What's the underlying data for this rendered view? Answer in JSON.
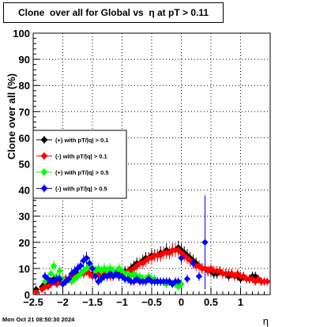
{
  "chart_data": {
    "type": "scatter",
    "title": "Clone  over all for Global vs  η at pT > 0.11",
    "xlabel": "η",
    "ylabel": "Clone  over all (%)",
    "xlim": [
      -2.5,
      1.5
    ],
    "ylim": [
      0,
      100
    ],
    "xticks": [
      "-2.5",
      "-2",
      "-1.5",
      "-1",
      "-0.5",
      "0",
      "0.5",
      "1"
    ],
    "yticks": [
      "0",
      "10",
      "20",
      "30",
      "40",
      "50",
      "60",
      "70",
      "80",
      "90",
      "100"
    ],
    "grid": true,
    "legend_position": "middle-left",
    "series": [
      {
        "name": "(+) with pT/|q| > 0.1",
        "color": "#000000",
        "marker": "diamond",
        "points": [
          [
            -2.45,
            2
          ],
          [
            -2.35,
            3
          ],
          [
            -2.3,
            4
          ],
          [
            -2.25,
            5
          ],
          [
            -2.2,
            5
          ],
          [
            -2.15,
            6
          ],
          [
            -2.1,
            5
          ],
          [
            -2.05,
            6
          ],
          [
            -2.0,
            5
          ],
          [
            -1.95,
            6
          ],
          [
            -1.9,
            6
          ],
          [
            -1.85,
            7
          ],
          [
            -1.8,
            7
          ],
          [
            -1.75,
            8
          ],
          [
            -1.7,
            8
          ],
          [
            -1.65,
            9
          ],
          [
            -1.6,
            9
          ],
          [
            -1.55,
            8
          ],
          [
            -1.5,
            8
          ],
          [
            -1.45,
            9
          ],
          [
            -1.4,
            8
          ],
          [
            -1.35,
            8
          ],
          [
            -1.3,
            8
          ],
          [
            -1.25,
            9
          ],
          [
            -1.2,
            8
          ],
          [
            -1.15,
            9
          ],
          [
            -1.1,
            8
          ],
          [
            -1.05,
            8
          ],
          [
            -1.0,
            8
          ],
          [
            -0.95,
            9
          ],
          [
            -0.9,
            9
          ],
          [
            -0.85,
            10
          ],
          [
            -0.8,
            11
          ],
          [
            -0.75,
            12
          ],
          [
            -0.7,
            12
          ],
          [
            -0.65,
            13
          ],
          [
            -0.6,
            14
          ],
          [
            -0.55,
            14
          ],
          [
            -0.5,
            15
          ],
          [
            -0.45,
            15
          ],
          [
            -0.4,
            15
          ],
          [
            -0.35,
            16
          ],
          [
            -0.3,
            16
          ],
          [
            -0.25,
            17
          ],
          [
            -0.2,
            16
          ],
          [
            -0.15,
            17
          ],
          [
            -0.1,
            17
          ],
          [
            -0.05,
            18
          ],
          [
            0.0,
            17
          ],
          [
            0.05,
            16
          ],
          [
            0.1,
            15
          ],
          [
            0.15,
            14
          ],
          [
            0.2,
            13
          ],
          [
            0.25,
            12
          ],
          [
            0.3,
            11
          ],
          [
            0.35,
            10
          ],
          [
            0.4,
            10
          ],
          [
            0.45,
            9
          ],
          [
            0.5,
            9
          ],
          [
            0.55,
            8
          ],
          [
            0.6,
            8
          ],
          [
            0.65,
            9
          ],
          [
            0.7,
            8
          ],
          [
            0.75,
            8
          ],
          [
            0.8,
            7
          ],
          [
            0.85,
            8
          ],
          [
            0.9,
            7
          ],
          [
            0.95,
            7
          ],
          [
            1.0,
            6
          ],
          [
            1.05,
            7
          ],
          [
            1.1,
            6
          ],
          [
            1.15,
            6
          ],
          [
            1.2,
            7
          ],
          [
            1.25,
            7
          ],
          [
            1.3,
            6
          ],
          [
            1.35,
            5
          ],
          [
            1.4,
            5
          ]
        ]
      },
      {
        "name": "(-) with pT/|q| > 0.1",
        "color": "#ff0000",
        "marker": "diamond",
        "points": [
          [
            -2.45,
            1
          ],
          [
            -2.35,
            2
          ],
          [
            -2.3,
            3
          ],
          [
            -2.25,
            3
          ],
          [
            -2.2,
            4
          ],
          [
            -2.15,
            5
          ],
          [
            -2.1,
            4
          ],
          [
            -2.05,
            5
          ],
          [
            -2.0,
            6
          ],
          [
            -1.95,
            6
          ],
          [
            -1.9,
            6
          ],
          [
            -1.85,
            7
          ],
          [
            -1.8,
            7
          ],
          [
            -1.75,
            7
          ],
          [
            -1.7,
            8
          ],
          [
            -1.65,
            8
          ],
          [
            -1.6,
            9
          ],
          [
            -1.55,
            8
          ],
          [
            -1.5,
            7
          ],
          [
            -1.45,
            8
          ],
          [
            -1.4,
            8
          ],
          [
            -1.35,
            7
          ],
          [
            -1.3,
            8
          ],
          [
            -1.25,
            8
          ],
          [
            -1.2,
            7
          ],
          [
            -1.15,
            8
          ],
          [
            -1.1,
            8
          ],
          [
            -1.05,
            7
          ],
          [
            -1.0,
            8
          ],
          [
            -0.95,
            8
          ],
          [
            -0.9,
            9
          ],
          [
            -0.85,
            9
          ],
          [
            -0.8,
            10
          ],
          [
            -0.75,
            11
          ],
          [
            -0.7,
            12
          ],
          [
            -0.65,
            12
          ],
          [
            -0.6,
            13
          ],
          [
            -0.55,
            14
          ],
          [
            -0.5,
            14
          ],
          [
            -0.45,
            15
          ],
          [
            -0.4,
            15
          ],
          [
            -0.35,
            15
          ],
          [
            -0.3,
            16
          ],
          [
            -0.25,
            16
          ],
          [
            -0.2,
            16
          ],
          [
            -0.15,
            17
          ],
          [
            -0.1,
            17
          ],
          [
            -0.05,
            17
          ],
          [
            0.0,
            16
          ],
          [
            0.05,
            15
          ],
          [
            0.1,
            14
          ],
          [
            0.15,
            13
          ],
          [
            0.2,
            12
          ],
          [
            0.25,
            11
          ],
          [
            0.3,
            11
          ],
          [
            0.35,
            10
          ],
          [
            0.4,
            10
          ],
          [
            0.45,
            9
          ],
          [
            0.5,
            10
          ],
          [
            0.55,
            9
          ],
          [
            0.6,
            9
          ],
          [
            0.65,
            9
          ],
          [
            0.7,
            8
          ],
          [
            0.75,
            8
          ],
          [
            0.8,
            8
          ],
          [
            0.85,
            8
          ],
          [
            0.9,
            7
          ],
          [
            0.95,
            8
          ],
          [
            1.0,
            7
          ],
          [
            1.05,
            7
          ],
          [
            1.1,
            6
          ],
          [
            1.15,
            6
          ],
          [
            1.2,
            6
          ],
          [
            1.25,
            5
          ],
          [
            1.3,
            6
          ],
          [
            1.35,
            5
          ],
          [
            1.4,
            5
          ],
          [
            1.45,
            5
          ]
        ]
      },
      {
        "name": "(+) with pT/|q| > 0.5",
        "color": "#00ff00",
        "marker": "diamond",
        "points": [
          [
            -2.3,
            5
          ],
          [
            -2.25,
            6
          ],
          [
            -2.2,
            8
          ],
          [
            -2.15,
            11
          ],
          [
            -2.1,
            7
          ],
          [
            -2.05,
            9
          ],
          [
            -2.0,
            6
          ],
          [
            -1.95,
            5
          ],
          [
            -1.9,
            6
          ],
          [
            -1.85,
            5
          ],
          [
            -1.8,
            6
          ],
          [
            -1.75,
            7
          ],
          [
            -1.7,
            8
          ],
          [
            -1.65,
            9
          ],
          [
            -1.6,
            10
          ],
          [
            -1.55,
            11
          ],
          [
            -1.5,
            10
          ],
          [
            -1.45,
            9
          ],
          [
            -1.4,
            10
          ],
          [
            -1.35,
            9
          ],
          [
            -1.3,
            10
          ],
          [
            -1.25,
            9
          ],
          [
            -1.2,
            10
          ],
          [
            -1.15,
            9
          ],
          [
            -1.1,
            9
          ],
          [
            -1.05,
            10
          ],
          [
            -1.0,
            9
          ],
          [
            -0.95,
            8
          ],
          [
            -0.9,
            8
          ],
          [
            -0.85,
            7
          ],
          [
            -0.8,
            8
          ],
          [
            -0.75,
            7
          ],
          [
            -0.7,
            7
          ],
          [
            -0.65,
            6
          ],
          [
            -0.6,
            6
          ],
          [
            -0.55,
            7
          ],
          [
            -0.5,
            6
          ],
          [
            -0.45,
            6
          ],
          [
            -0.4,
            5
          ],
          [
            -0.35,
            5
          ],
          [
            -0.3,
            5
          ],
          [
            -0.25,
            4
          ],
          [
            -0.2,
            5
          ],
          [
            -0.15,
            4
          ],
          [
            -0.1,
            4
          ],
          [
            -0.05,
            3
          ],
          [
            0.0,
            4
          ]
        ]
      },
      {
        "name": "(-) with pT/|q| > 0.5",
        "color": "#0000ff",
        "marker": "diamond",
        "points": [
          [
            -2.3,
            7
          ],
          [
            -2.25,
            6
          ],
          [
            -2.2,
            5
          ],
          [
            -2.15,
            5
          ],
          [
            -2.1,
            6
          ],
          [
            -2.05,
            6
          ],
          [
            -2.0,
            4
          ],
          [
            -1.95,
            5
          ],
          [
            -1.9,
            6
          ],
          [
            -1.85,
            8
          ],
          [
            -1.8,
            9
          ],
          [
            -1.75,
            10
          ],
          [
            -1.7,
            11
          ],
          [
            -1.65,
            13
          ],
          [
            -1.6,
            14
          ],
          [
            -1.55,
            12
          ],
          [
            -1.5,
            10
          ],
          [
            -1.45,
            7
          ],
          [
            -1.4,
            5
          ],
          [
            -1.35,
            6
          ],
          [
            -1.3,
            7
          ],
          [
            -1.25,
            7
          ],
          [
            -1.2,
            8
          ],
          [
            -1.15,
            7
          ],
          [
            -1.1,
            8
          ],
          [
            -1.05,
            7
          ],
          [
            -1.0,
            7
          ],
          [
            -0.95,
            6
          ],
          [
            -0.9,
            6
          ],
          [
            -0.85,
            5
          ],
          [
            -0.8,
            5
          ],
          [
            -0.75,
            6
          ],
          [
            -0.7,
            5
          ],
          [
            -0.65,
            5
          ],
          [
            -0.6,
            5
          ],
          [
            -0.55,
            6
          ],
          [
            -0.5,
            5
          ],
          [
            -0.45,
            5
          ],
          [
            -0.4,
            5
          ],
          [
            -0.35,
            5
          ],
          [
            -0.3,
            5
          ],
          [
            -0.25,
            5
          ],
          [
            -0.2,
            5
          ],
          [
            -0.15,
            4
          ],
          [
            -0.1,
            5
          ],
          [
            -0.05,
            5
          ],
          [
            0.0,
            14
          ],
          [
            0.1,
            6
          ],
          [
            0.2,
            12
          ],
          [
            0.3,
            7
          ],
          [
            0.4,
            20
          ]
        ]
      }
    ],
    "footer": "Mon Oct 21 08:50:30 2024"
  }
}
